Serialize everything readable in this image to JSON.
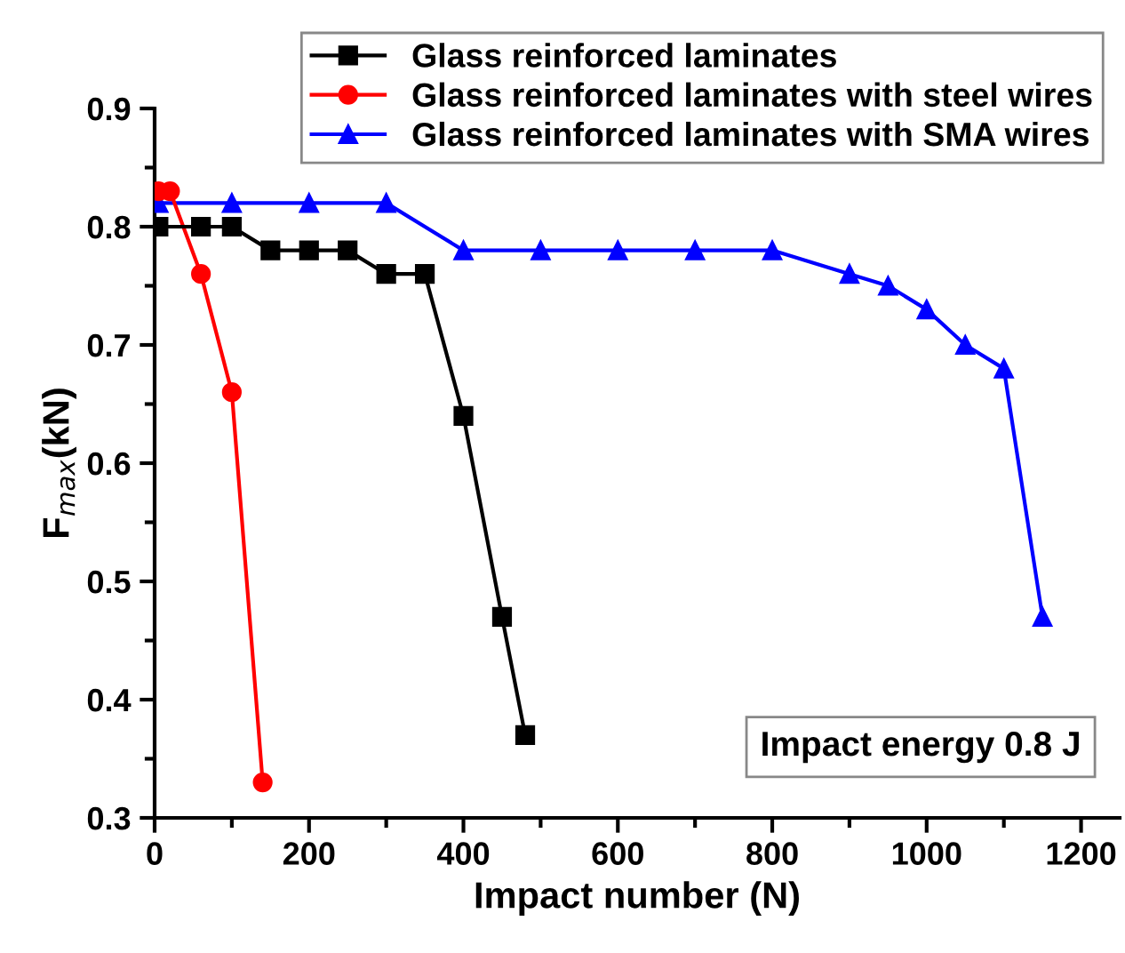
{
  "chart_data": {
    "type": "line",
    "xlabel": "Impact number (N)",
    "ylabel": "F$_{max}$(kN)",
    "series": [
      {
        "name": "Glass reinforced laminates",
        "color": "#000000",
        "marker": "square",
        "x": [
          5,
          60,
          100,
          150,
          200,
          250,
          300,
          350,
          400,
          450,
          480
        ],
        "values": [
          0.8,
          0.8,
          0.8,
          0.78,
          0.78,
          0.78,
          0.76,
          0.76,
          0.64,
          0.47,
          0.37
        ]
      },
      {
        "name": "Glass reinforced laminates with steel wires",
        "color": "#ff0000",
        "marker": "circle",
        "x": [
          5,
          20,
          60,
          100,
          140
        ],
        "values": [
          0.83,
          0.83,
          0.76,
          0.66,
          0.33
        ]
      },
      {
        "name": "Glass reinforced laminates with SMA wires",
        "color": "#0000ff",
        "marker": "triangle",
        "x": [
          5,
          100,
          200,
          300,
          400,
          500,
          600,
          700,
          800,
          900,
          950,
          1000,
          1050,
          1100,
          1150
        ],
        "values": [
          0.82,
          0.82,
          0.82,
          0.82,
          0.78,
          0.78,
          0.78,
          0.78,
          0.78,
          0.76,
          0.75,
          0.73,
          0.7,
          0.68,
          0.47
        ]
      }
    ],
    "xlim": [
      0,
      1250
    ],
    "xticks": [
      0,
      200,
      400,
      600,
      800,
      1000,
      1200
    ],
    "ylim": [
      0.3,
      0.9
    ],
    "yticks": [
      0.3,
      0.4,
      0.5,
      0.6,
      0.7,
      0.8,
      0.9
    ],
    "grid": false,
    "legend": "top right",
    "line_style": "solid",
    "annotations": [
      "Impact energy 0.8 J"
    ]
  }
}
